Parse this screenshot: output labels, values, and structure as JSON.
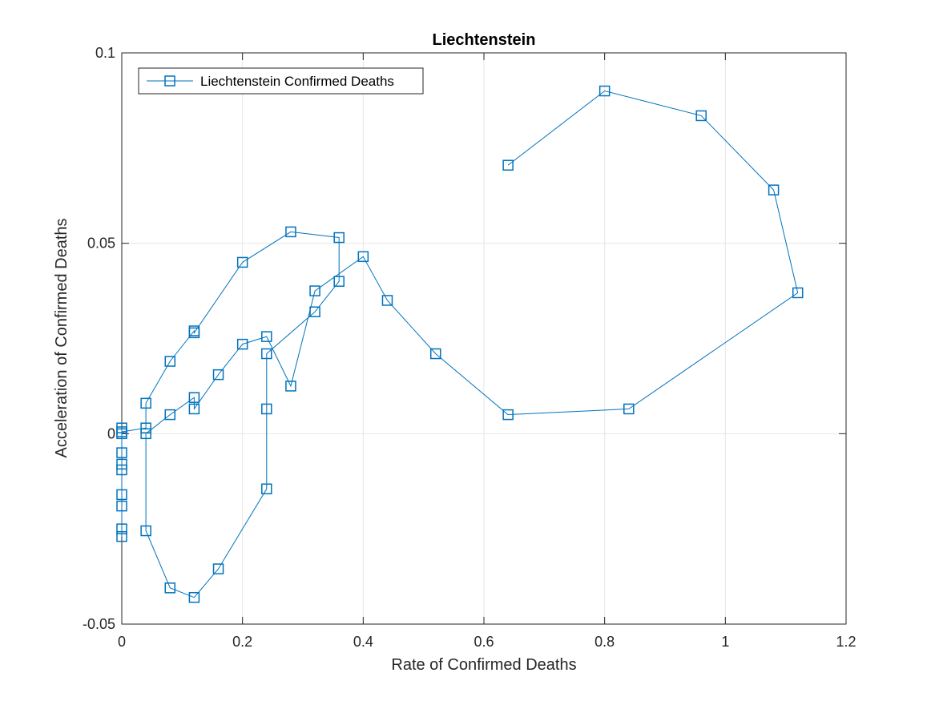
{
  "chart_data": {
    "type": "line",
    "title": "Liechtenstein",
    "xlabel": "Rate of Confirmed Deaths",
    "ylabel": "Acceleration of Confirmed Deaths",
    "xlim": [
      0,
      1.2
    ],
    "ylim": [
      -0.05,
      0.1
    ],
    "x_ticks": [
      0,
      0.2,
      0.4,
      0.6,
      0.8,
      1,
      1.2
    ],
    "x_tick_labels": [
      "0",
      "0.2",
      "0.4",
      "0.6",
      "0.8",
      "1",
      "1.2"
    ],
    "y_ticks": [
      -0.05,
      0,
      0.05,
      0.1
    ],
    "y_tick_labels": [
      "-0.05",
      "0",
      "0.05",
      "0.1"
    ],
    "grid": true,
    "legend_position": "top-left",
    "series": [
      {
        "name": "Liechtenstein Confirmed Deaths",
        "color": "#0072BD",
        "marker": "square",
        "x": [
          0,
          0,
          0,
          0,
          0,
          0,
          0,
          0,
          0,
          0,
          0.04,
          0.04,
          0.08,
          0.12,
          0.12,
          0.2,
          0.28,
          0.36,
          0.36,
          0.32,
          0.24,
          0.24,
          0.24,
          0.16,
          0.12,
          0.08,
          0.04,
          0.04,
          0.08,
          0.12,
          0.12,
          0.16,
          0.2,
          0.24,
          0.28,
          0.32,
          0.4,
          0.44,
          0.52,
          0.64,
          0.84,
          1.12,
          1.08,
          0.96,
          0.8,
          0.64
        ],
        "y": [
          -0.027,
          -0.025,
          -0.019,
          -0.016,
          -0.0095,
          -0.008,
          -0.005,
          0,
          0.0015,
          0.0005,
          0.0015,
          0.008,
          0.019,
          0.027,
          0.0265,
          0.045,
          0.053,
          0.0515,
          0.04,
          0.032,
          0.021,
          0.0065,
          -0.0145,
          -0.0355,
          -0.043,
          -0.0405,
          -0.0255,
          0,
          0.005,
          0.0095,
          0.0065,
          0.0155,
          0.0235,
          0.0255,
          0.0125,
          0.0375,
          0.0465,
          0.035,
          0.021,
          0.005,
          0.0065,
          0.037,
          0.064,
          0.0835,
          0.09,
          0.0705
        ]
      }
    ]
  }
}
